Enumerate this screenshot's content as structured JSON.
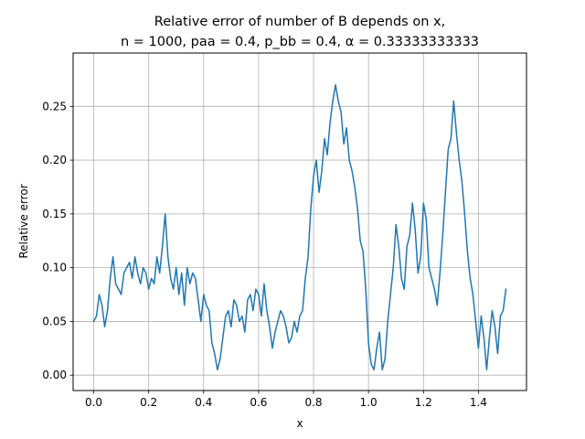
{
  "chart_data": {
    "type": "line",
    "title_line1": "Relative error of number of B depends on x,",
    "title_line2": "n = 1000, paa = 0.4, p_bb = 0.4, α = 0.33333333333",
    "xlabel": "x",
    "ylabel": "Relative error",
    "xlim": [
      -0.075,
      1.575
    ],
    "ylim": [
      -0.0143,
      0.2996
    ],
    "x_ticks": [
      0.0,
      0.2,
      0.4,
      0.6,
      0.8,
      1.0,
      1.2,
      1.4
    ],
    "x_tick_labels": [
      "0.0",
      "0.2",
      "0.4",
      "0.6",
      "0.8",
      "1.0",
      "1.2",
      "1.4"
    ],
    "y_ticks": [
      0.0,
      0.05,
      0.1,
      0.15,
      0.2,
      0.25
    ],
    "y_tick_labels": [
      "0.00",
      "0.05",
      "0.10",
      "0.15",
      "0.20",
      "0.25"
    ],
    "grid": true,
    "series": [
      {
        "color": "#1f77b4",
        "x": [
          0.0,
          0.01,
          0.02,
          0.03,
          0.04,
          0.05,
          0.06,
          0.07,
          0.08,
          0.09,
          0.1,
          0.11,
          0.12,
          0.13,
          0.14,
          0.15,
          0.16,
          0.17,
          0.18,
          0.19,
          0.2,
          0.21,
          0.22,
          0.23,
          0.24,
          0.25,
          0.26,
          0.27,
          0.28,
          0.29,
          0.3,
          0.31,
          0.32,
          0.33,
          0.34,
          0.35,
          0.36,
          0.37,
          0.38,
          0.39,
          0.4,
          0.41,
          0.42,
          0.43,
          0.44,
          0.45,
          0.46,
          0.47,
          0.48,
          0.49,
          0.5,
          0.51,
          0.52,
          0.53,
          0.54,
          0.55,
          0.56,
          0.57,
          0.58,
          0.59,
          0.6,
          0.61,
          0.62,
          0.63,
          0.64,
          0.65,
          0.66,
          0.67,
          0.68,
          0.69,
          0.7,
          0.71,
          0.72,
          0.73,
          0.74,
          0.75,
          0.76,
          0.77,
          0.78,
          0.79,
          0.8,
          0.81,
          0.82,
          0.83,
          0.84,
          0.85,
          0.86,
          0.87,
          0.88,
          0.89,
          0.9,
          0.91,
          0.92,
          0.93,
          0.94,
          0.95,
          0.96,
          0.97,
          0.98,
          0.99,
          1.0,
          1.01,
          1.02,
          1.03,
          1.04,
          1.05,
          1.06,
          1.07,
          1.08,
          1.09,
          1.1,
          1.11,
          1.12,
          1.13,
          1.14,
          1.15,
          1.16,
          1.17,
          1.18,
          1.19,
          1.2,
          1.21,
          1.22,
          1.23,
          1.24,
          1.25,
          1.26,
          1.27,
          1.28,
          1.29,
          1.3,
          1.31,
          1.32,
          1.33,
          1.34,
          1.35,
          1.36,
          1.37,
          1.38,
          1.39,
          1.4,
          1.41,
          1.42,
          1.43,
          1.44,
          1.45,
          1.46,
          1.47,
          1.48,
          1.49,
          1.5
        ],
        "y": [
          0.05,
          0.055,
          0.075,
          0.065,
          0.045,
          0.06,
          0.09,
          0.11,
          0.085,
          0.08,
          0.075,
          0.095,
          0.1,
          0.105,
          0.09,
          0.11,
          0.095,
          0.085,
          0.1,
          0.095,
          0.08,
          0.09,
          0.085,
          0.11,
          0.095,
          0.12,
          0.15,
          0.11,
          0.09,
          0.08,
          0.1,
          0.075,
          0.095,
          0.065,
          0.1,
          0.085,
          0.095,
          0.09,
          0.07,
          0.05,
          0.075,
          0.065,
          0.06,
          0.03,
          0.02,
          0.005,
          0.015,
          0.035,
          0.055,
          0.06,
          0.045,
          0.07,
          0.065,
          0.05,
          0.055,
          0.04,
          0.07,
          0.075,
          0.06,
          0.08,
          0.075,
          0.055,
          0.085,
          0.06,
          0.045,
          0.025,
          0.04,
          0.05,
          0.06,
          0.055,
          0.045,
          0.03,
          0.035,
          0.05,
          0.04,
          0.055,
          0.06,
          0.09,
          0.11,
          0.155,
          0.185,
          0.2,
          0.17,
          0.19,
          0.22,
          0.205,
          0.235,
          0.255,
          0.27,
          0.255,
          0.245,
          0.215,
          0.23,
          0.2,
          0.19,
          0.175,
          0.155,
          0.125,
          0.115,
          0.08,
          0.03,
          0.01,
          0.005,
          0.025,
          0.04,
          0.005,
          0.015,
          0.05,
          0.075,
          0.1,
          0.14,
          0.12,
          0.09,
          0.08,
          0.12,
          0.13,
          0.16,
          0.135,
          0.095,
          0.11,
          0.16,
          0.145,
          0.1,
          0.09,
          0.08,
          0.065,
          0.095,
          0.13,
          0.17,
          0.21,
          0.22,
          0.255,
          0.225,
          0.2,
          0.18,
          0.15,
          0.115,
          0.09,
          0.075,
          0.05,
          0.025,
          0.055,
          0.035,
          0.005,
          0.035,
          0.06,
          0.045,
          0.02,
          0.055,
          0.06,
          0.08
        ]
      }
    ]
  }
}
